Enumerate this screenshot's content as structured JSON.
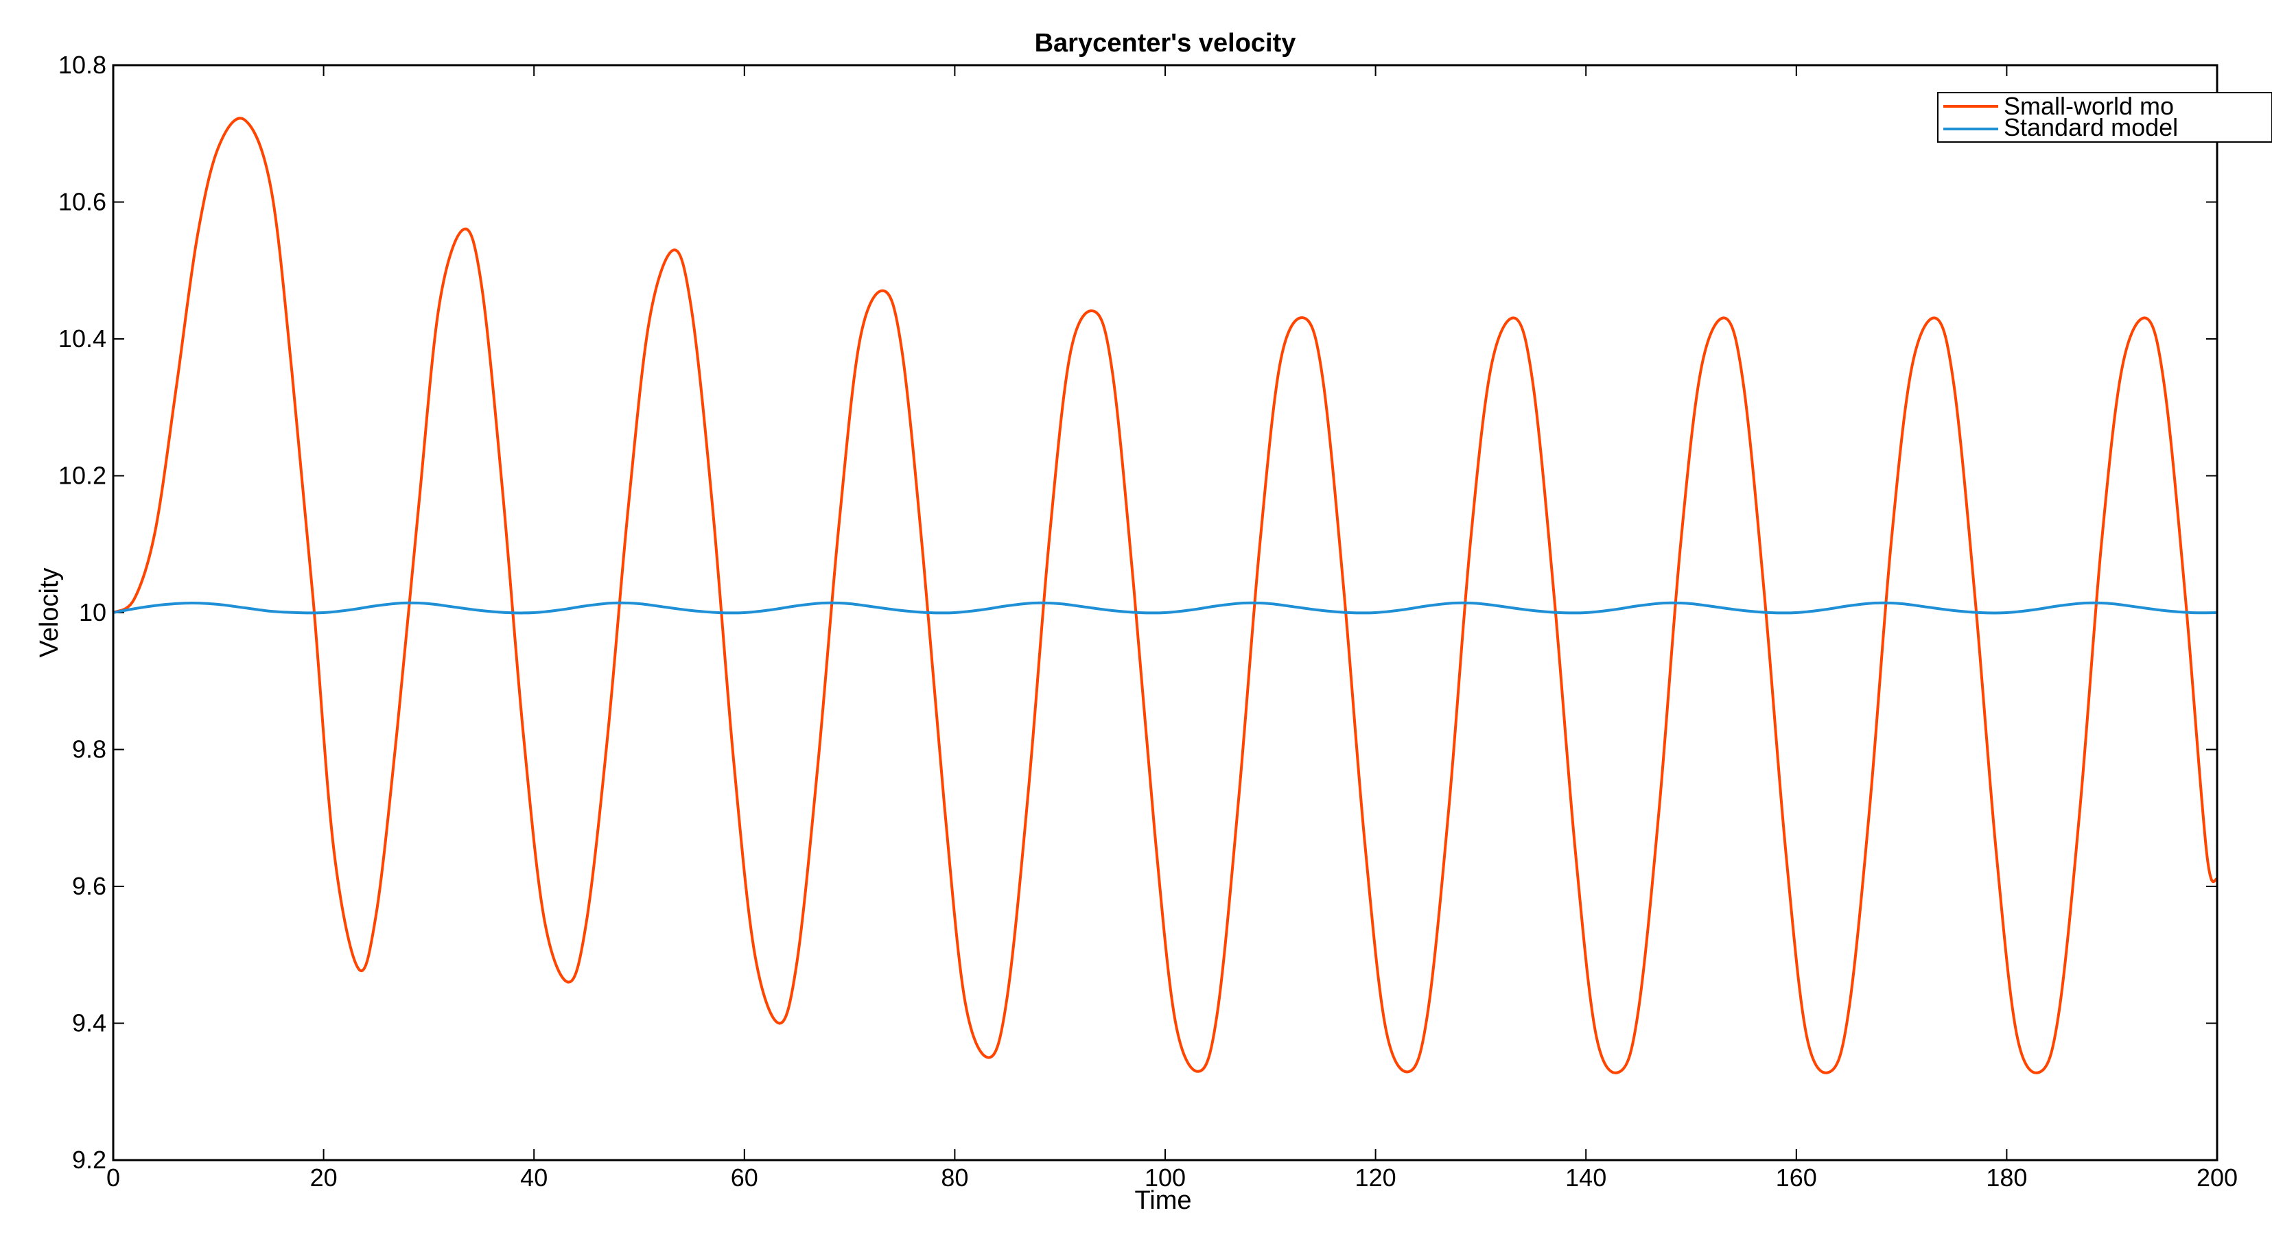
{
  "chart_data": {
    "type": "line",
    "title": "Barycenter's velocity",
    "xlabel": "Time",
    "ylabel": "Velocity",
    "xlim": [
      0,
      200
    ],
    "ylim": [
      9.2,
      10.8
    ],
    "xticks": [
      0,
      20,
      40,
      60,
      80,
      100,
      120,
      140,
      160,
      180,
      200
    ],
    "yticks": [
      9.2,
      9.4,
      9.6,
      9.8,
      10,
      10.2,
      10.4,
      10.6,
      10.8
    ],
    "xtick_labels": [
      "0",
      "20",
      "40",
      "60",
      "80",
      "100",
      "120",
      "140",
      "160",
      "180",
      "200"
    ],
    "ytick_labels": [
      "9.2",
      "9.4",
      "9.6",
      "9.8",
      "10",
      "10.2",
      "10.4",
      "10.6",
      "10.8"
    ],
    "grid": false,
    "legend_position": "top-right",
    "series": [
      {
        "name": "Small-world mo",
        "color": "#ff4500",
        "x": [
          0,
          2,
          4,
          6,
          8,
          10,
          12.5,
          15,
          17,
          19,
          21,
          23.3,
          25,
          27,
          29,
          31,
          33.3,
          35,
          37,
          39,
          41,
          43.3,
          45,
          47,
          49,
          51,
          53.3,
          55,
          57,
          59,
          61,
          63.3,
          65,
          67,
          69,
          71,
          73.3,
          75,
          77,
          79,
          81,
          83.3,
          85,
          87,
          89,
          91,
          93.3,
          95,
          97,
          99,
          101,
          103.3,
          105,
          107,
          109,
          111,
          113.3,
          115,
          117,
          119,
          121,
          123.3,
          125,
          127,
          129,
          131,
          133.3,
          135,
          137,
          139,
          141,
          143.3,
          145,
          147,
          149,
          151,
          153.3,
          155,
          157,
          159,
          161,
          163.3,
          165,
          167,
          169,
          171,
          173.3,
          175,
          177,
          179,
          181,
          183.3,
          185,
          187,
          189,
          191,
          193.3,
          195,
          197,
          199,
          200
        ],
        "values": [
          10.0,
          10.02,
          10.12,
          10.33,
          10.55,
          10.68,
          10.72,
          10.62,
          10.35,
          10.02,
          9.65,
          9.48,
          9.56,
          9.83,
          10.15,
          10.45,
          10.56,
          10.48,
          10.18,
          9.82,
          9.55,
          9.46,
          9.55,
          9.82,
          10.16,
          10.43,
          10.53,
          10.44,
          10.15,
          9.78,
          9.5,
          9.4,
          9.49,
          9.78,
          10.13,
          10.4,
          10.47,
          10.38,
          10.08,
          9.72,
          9.43,
          9.35,
          9.44,
          9.74,
          10.11,
          10.38,
          10.44,
          10.35,
          10.04,
          9.68,
          9.4,
          9.33,
          9.42,
          9.73,
          10.1,
          10.37,
          10.43,
          10.34,
          10.03,
          9.66,
          9.39,
          9.33,
          9.42,
          9.72,
          10.1,
          10.36,
          10.43,
          10.33,
          10.02,
          9.65,
          9.38,
          9.33,
          9.42,
          9.72,
          10.1,
          10.36,
          10.43,
          10.33,
          10.02,
          9.65,
          9.38,
          9.33,
          9.42,
          9.72,
          10.1,
          10.36,
          10.43,
          10.33,
          10.02,
          9.65,
          9.38,
          9.33,
          9.42,
          9.72,
          10.1,
          10.36,
          10.43,
          10.33,
          10.02,
          9.65,
          9.61
        ]
      },
      {
        "name": "Standard model",
        "color": "#1f8fd6",
        "x": [
          0,
          2.5,
          5,
          7.5,
          10,
          12.5,
          15,
          17.5,
          20,
          22.5,
          25,
          27.5,
          30,
          32.5,
          35,
          37.5,
          40,
          42.5,
          45,
          47.5,
          50,
          52.5,
          55,
          57.5,
          60,
          62.5,
          65,
          67.5,
          70,
          72.5,
          75,
          77.5,
          80,
          82.5,
          85,
          87.5,
          90,
          92.5,
          95,
          97.5,
          100,
          102.5,
          105,
          107.5,
          110,
          112.5,
          115,
          117.5,
          120,
          122.5,
          125,
          127.5,
          130,
          132.5,
          135,
          137.5,
          140,
          142.5,
          145,
          147.5,
          150,
          152.5,
          155,
          157.5,
          160,
          162.5,
          165,
          167.5,
          170,
          172.5,
          175,
          177.5,
          180,
          182.5,
          185,
          187.5,
          190,
          192.5,
          195,
          197.5,
          200
        ],
        "values": [
          10.0,
          10.007,
          10.012,
          10.014,
          10.012,
          10.007,
          10.002,
          10.0,
          10.0,
          10.004,
          10.01,
          10.014,
          10.013,
          10.008,
          10.003,
          10.0,
          10.0,
          10.004,
          10.01,
          10.014,
          10.013,
          10.008,
          10.003,
          10.0,
          10.0,
          10.004,
          10.01,
          10.014,
          10.013,
          10.008,
          10.003,
          10.0,
          10.0,
          10.004,
          10.01,
          10.014,
          10.013,
          10.008,
          10.003,
          10.0,
          10.0,
          10.004,
          10.01,
          10.014,
          10.013,
          10.008,
          10.003,
          10.0,
          10.0,
          10.004,
          10.01,
          10.014,
          10.013,
          10.008,
          10.003,
          10.0,
          10.0,
          10.004,
          10.01,
          10.014,
          10.013,
          10.008,
          10.003,
          10.0,
          10.0,
          10.004,
          10.01,
          10.014,
          10.013,
          10.008,
          10.003,
          10.0,
          10.0,
          10.004,
          10.01,
          10.014,
          10.013,
          10.008,
          10.003,
          10.0,
          10.0
        ]
      }
    ]
  }
}
